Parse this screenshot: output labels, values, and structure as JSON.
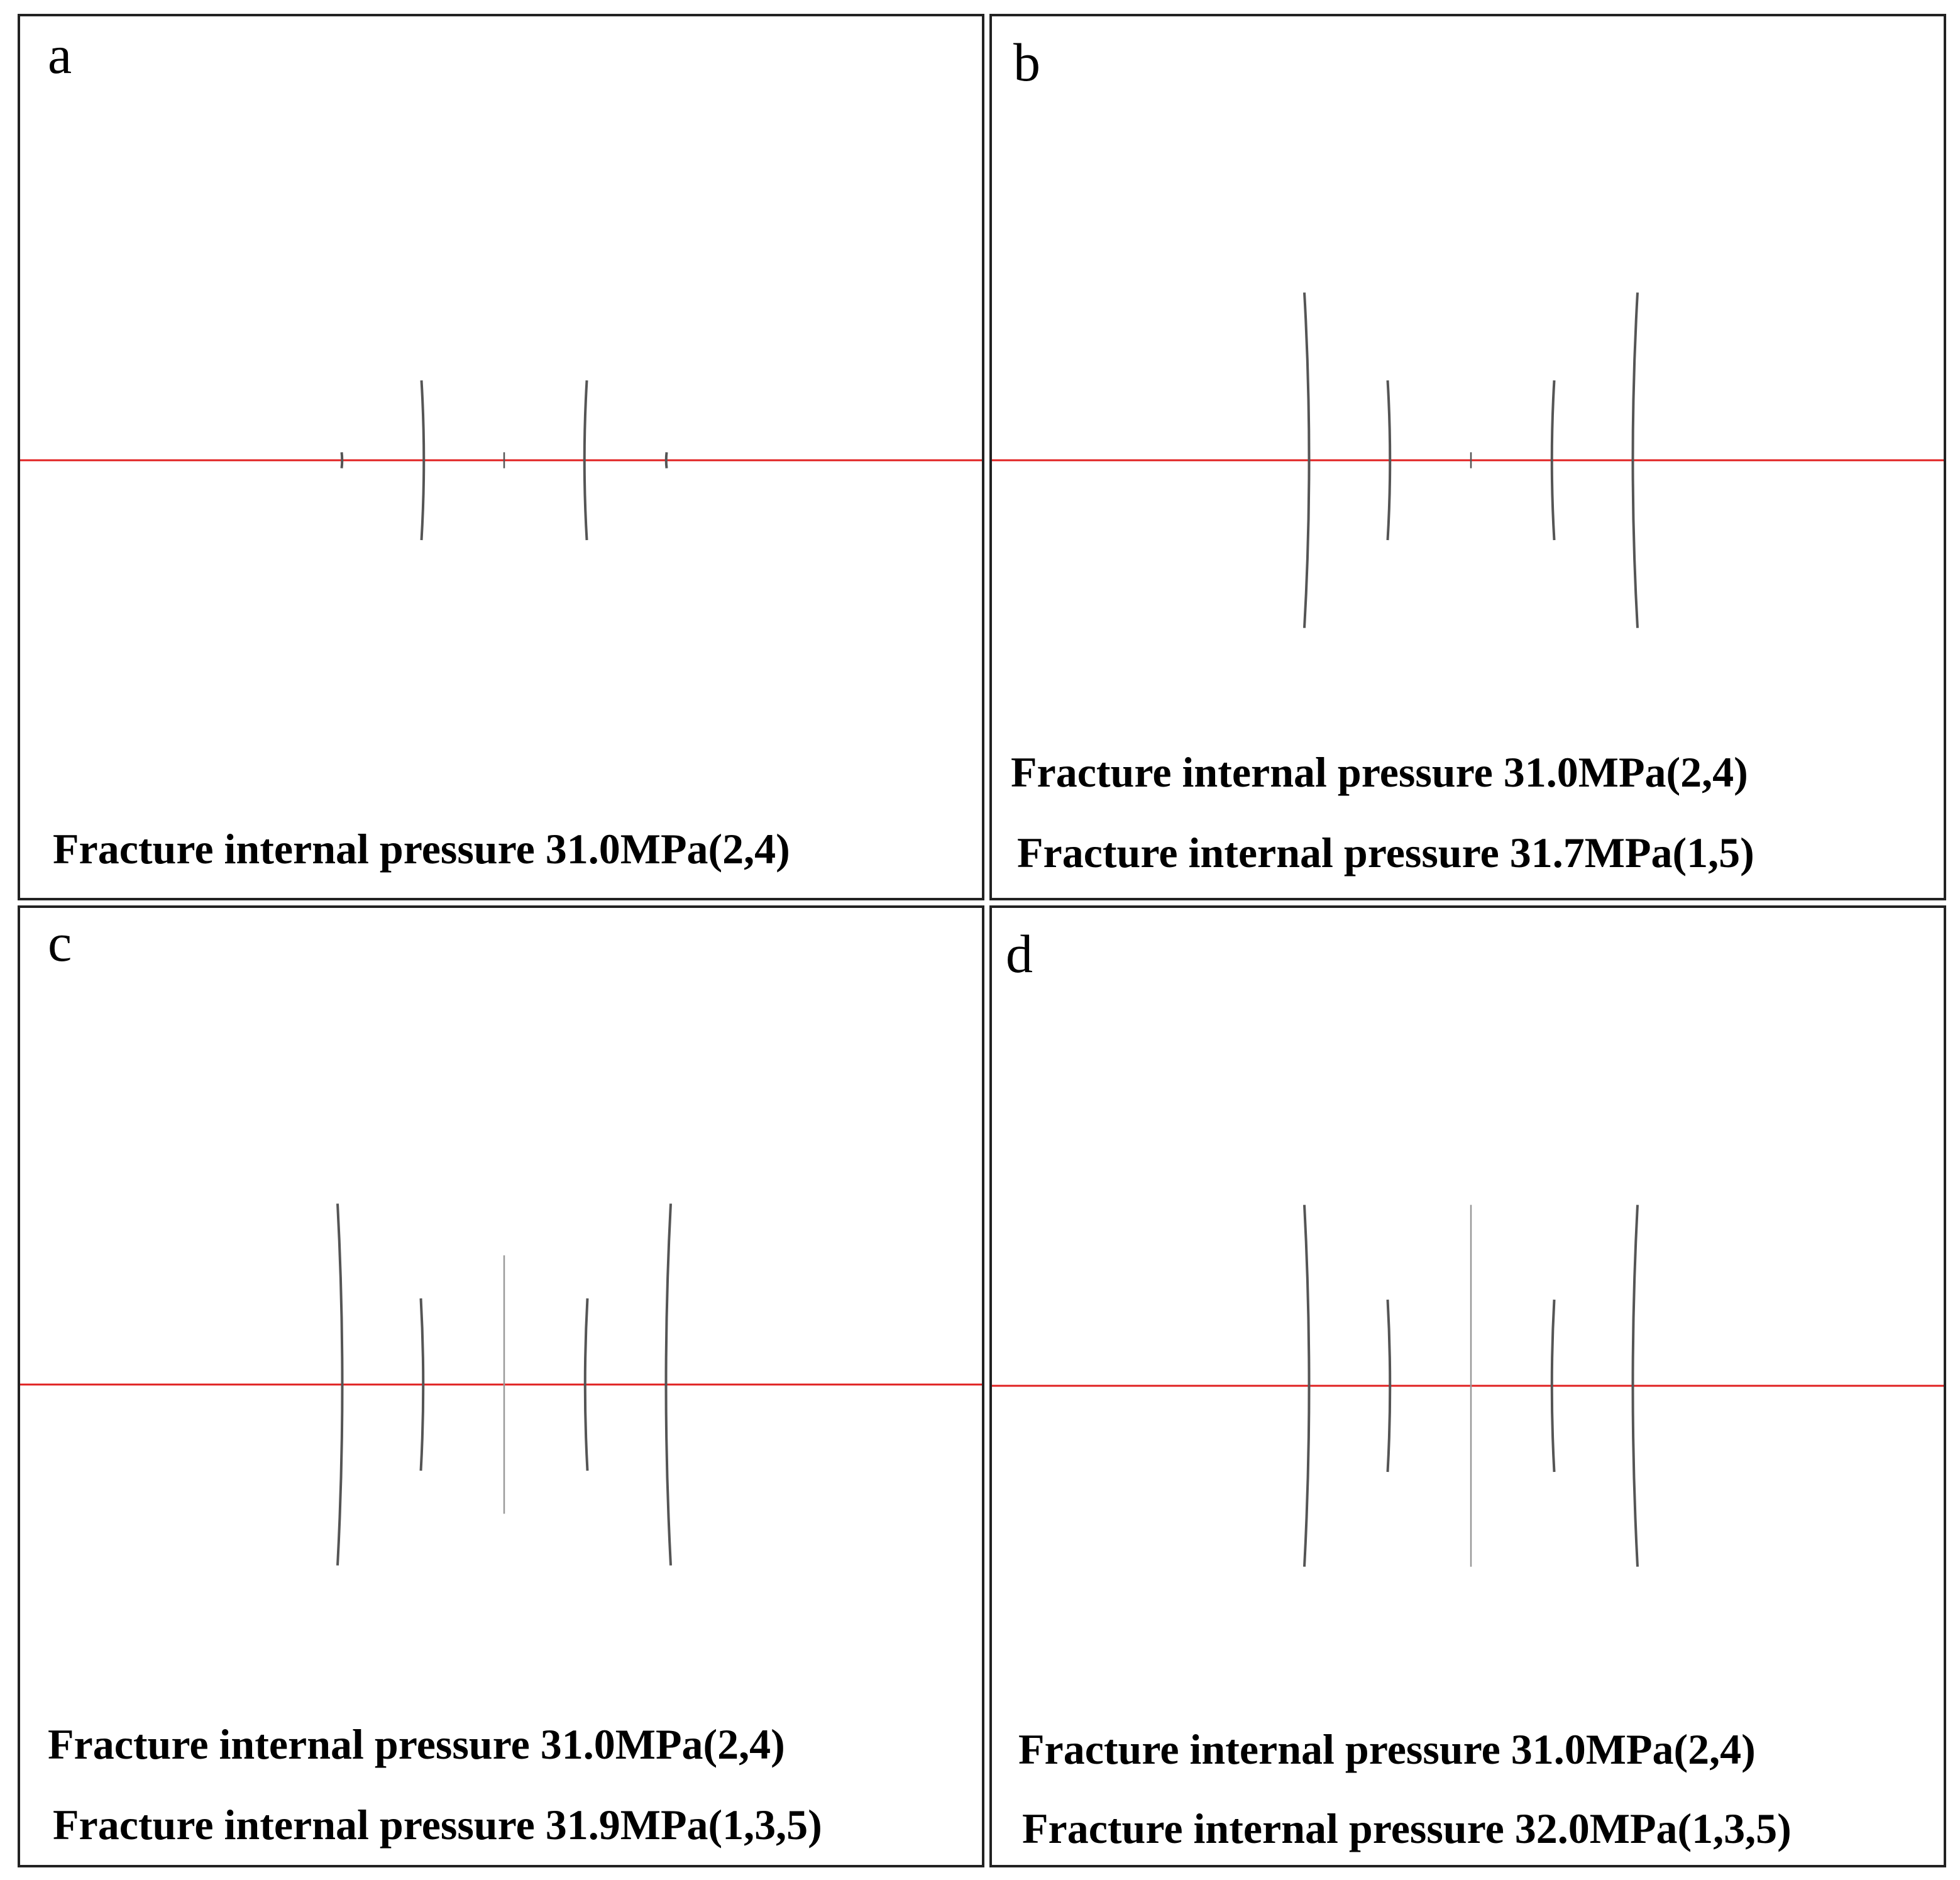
{
  "panels": [
    {
      "label": "a",
      "captions": [
        "Fracture internal pressure 31.0MPa(2,4)"
      ],
      "fractures": [
        {
          "id": 1,
          "half_length": 0.1
        },
        {
          "id": 2,
          "half_length": 1.0
        },
        {
          "id": 3,
          "half_length": 0.1
        },
        {
          "id": 4,
          "half_length": 1.0
        },
        {
          "id": 5,
          "half_length": 0.1
        }
      ]
    },
    {
      "label": "b",
      "captions": [
        "Fracture internal pressure 31.0MPa(2,4)",
        "Fracture internal pressure 31.7MPa(1,5)"
      ],
      "fractures": [
        {
          "id": 1,
          "half_length": 2.1
        },
        {
          "id": 2,
          "half_length": 1.0
        },
        {
          "id": 3,
          "half_length": 0.1
        },
        {
          "id": 4,
          "half_length": 1.0
        },
        {
          "id": 5,
          "half_length": 2.1
        }
      ]
    },
    {
      "label": "c",
      "captions": [
        "Fracture internal pressure 31.0MPa(2,4)",
        "Fracture internal pressure 31.9MPa(1,3,5)"
      ],
      "fractures": [
        {
          "id": 1,
          "half_length": 2.1
        },
        {
          "id": 2,
          "half_length": 1.0
        },
        {
          "id": 3,
          "half_length": 1.5
        },
        {
          "id": 4,
          "half_length": 1.0
        },
        {
          "id": 5,
          "half_length": 2.1
        }
      ]
    },
    {
      "label": "d",
      "captions": [
        "Fracture internal pressure 31.0MPa(2,4)",
        "Fracture internal pressure 32.0MPa(1,3,5)"
      ],
      "fractures": [
        {
          "id": 1,
          "half_length": 2.1
        },
        {
          "id": 2,
          "half_length": 1.0
        },
        {
          "id": 3,
          "half_length": 2.1
        },
        {
          "id": 4,
          "half_length": 1.0
        },
        {
          "id": 5,
          "half_length": 2.1
        }
      ]
    }
  ],
  "colors": {
    "wellbore": "#e02020",
    "fracture": "#555555",
    "border": "#222222"
  }
}
